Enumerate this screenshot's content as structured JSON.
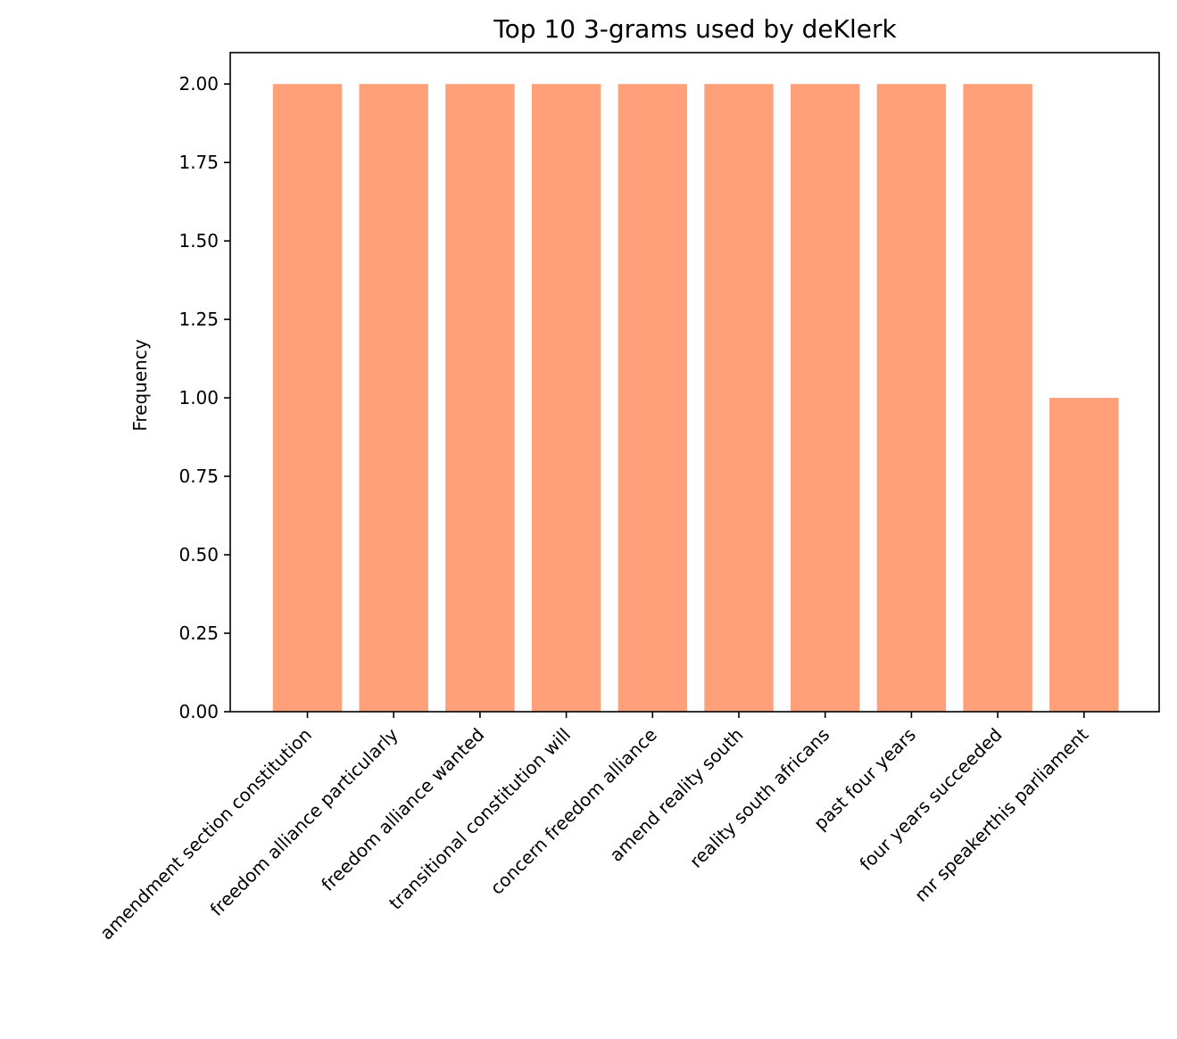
{
  "chart_data": {
    "type": "bar",
    "title": "Top 10 3-grams used by deKlerk",
    "xlabel": "",
    "ylabel": "Frequency",
    "categories": [
      "amendment section constitution",
      "freedom alliance particularly",
      "freedom alliance wanted",
      "transitional constitution will",
      "concern freedom alliance",
      "amend reality south",
      "reality south africans",
      "past four years",
      "four years succeeded",
      "mr speakerthis parliament"
    ],
    "values": [
      2,
      2,
      2,
      2,
      2,
      2,
      2,
      2,
      2,
      1
    ],
    "ylim": [
      0,
      2.1
    ],
    "yticks": [
      "0.00",
      "0.25",
      "0.50",
      "0.75",
      "1.00",
      "1.25",
      "1.50",
      "1.75",
      "2.00"
    ],
    "bar_color": "#FFA07A",
    "grid": false,
    "legend": "none"
  }
}
